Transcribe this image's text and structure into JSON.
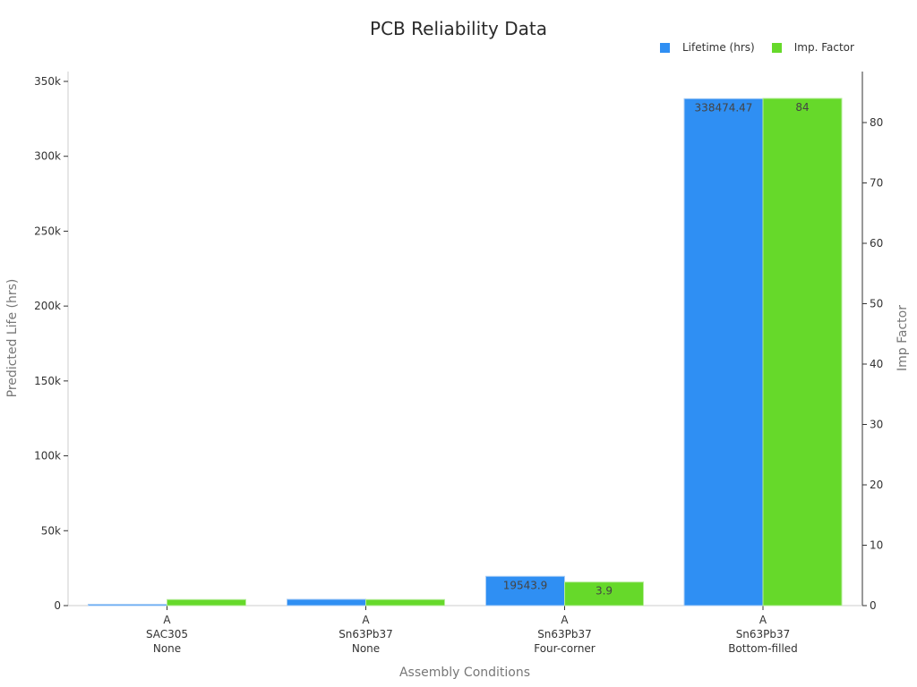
{
  "chart_data": {
    "type": "bar",
    "title": "PCB Reliability Data",
    "xlabel": "Assembly Conditions",
    "ylabel": "Predicted Life (hrs)",
    "y2label": "Imp Factor",
    "categories": [
      [
        "A",
        "SAC305",
        "None"
      ],
      [
        "A",
        "Sn63Pb37",
        "None"
      ],
      [
        "A",
        "Sn63Pb37",
        "Four-corner"
      ],
      [
        "A",
        "Sn63Pb37",
        "Bottom-filled"
      ]
    ],
    "series": [
      {
        "name": "Lifetime (hrs)",
        "axis": "left",
        "color": "#2f8ff3",
        "values": [
          600,
          4200,
          19543.9,
          338474.47
        ],
        "labels": [
          "",
          "",
          "19543.9",
          "338474.47"
        ]
      },
      {
        "name": "Imp. Factor",
        "axis": "right",
        "color": "#66d92a",
        "values": [
          1,
          1,
          3.9,
          84
        ],
        "labels": [
          "",
          "",
          "3.9",
          "84"
        ]
      }
    ],
    "ylim": [
      0,
      350000
    ],
    "yticks": [
      "0",
      "50k",
      "100k",
      "150k",
      "200k",
      "250k",
      "300k",
      "350k"
    ],
    "y2lim": [
      0,
      88
    ],
    "y2ticks": [
      "0",
      "10",
      "20",
      "30",
      "40",
      "50",
      "60",
      "70",
      "80"
    ],
    "legend_position": "top-right",
    "grid": false
  },
  "legend": {
    "items": [
      {
        "label": "Lifetime (hrs)",
        "color": "#2f8ff3"
      },
      {
        "label": "Imp. Factor",
        "color": "#66d92a"
      }
    ]
  }
}
